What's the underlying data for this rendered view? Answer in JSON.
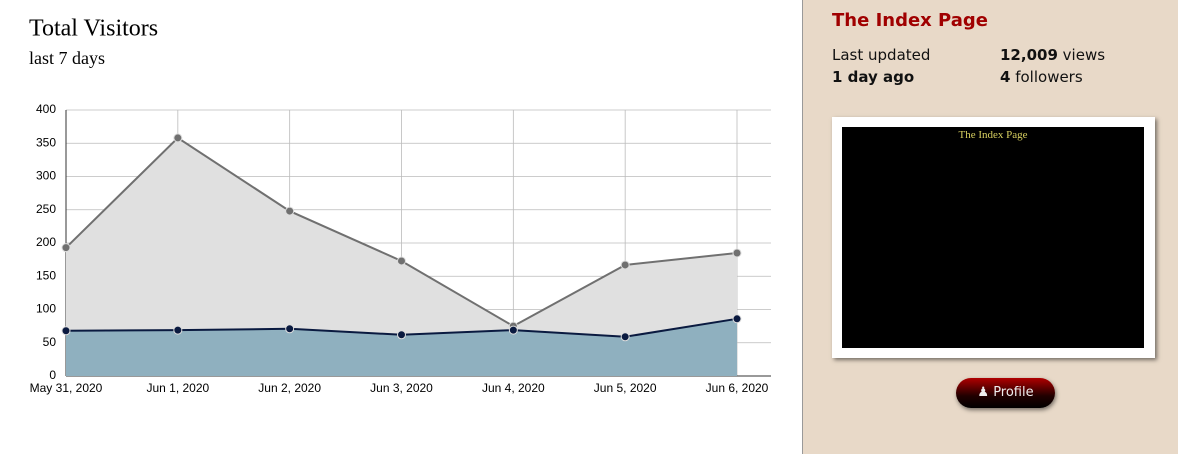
{
  "chart_data": {
    "type": "area",
    "title": "Total Visitors",
    "subtitle": "last 7 days",
    "categories": [
      "May 31, 2020",
      "Jun 1, 2020",
      "Jun 2, 2020",
      "Jun 3, 2020",
      "Jun 4, 2020",
      "Jun 5, 2020",
      "Jun 6, 2020"
    ],
    "series": [
      {
        "color": "#707070",
        "fill": "#e0e0e0",
        "values": [
          193,
          358,
          248,
          173,
          75,
          167,
          185
        ]
      },
      {
        "color": "#0a1a40",
        "fill": "#8fb0bf",
        "values": [
          68,
          69,
          71,
          62,
          69,
          59,
          86
        ]
      }
    ],
    "ylim": [
      0,
      400
    ],
    "yticks": [
      0,
      50,
      100,
      150,
      200,
      250,
      300,
      350,
      400
    ],
    "grid": true
  },
  "sidebar": {
    "title": "The Index Page",
    "last_updated_label": "Last updated",
    "last_updated_value": "1 day ago",
    "views_count": "12,009",
    "views_label": "views",
    "followers_count": "4",
    "followers_label": "followers",
    "thumbnail_text": "The Index Page",
    "button": "Profile"
  }
}
